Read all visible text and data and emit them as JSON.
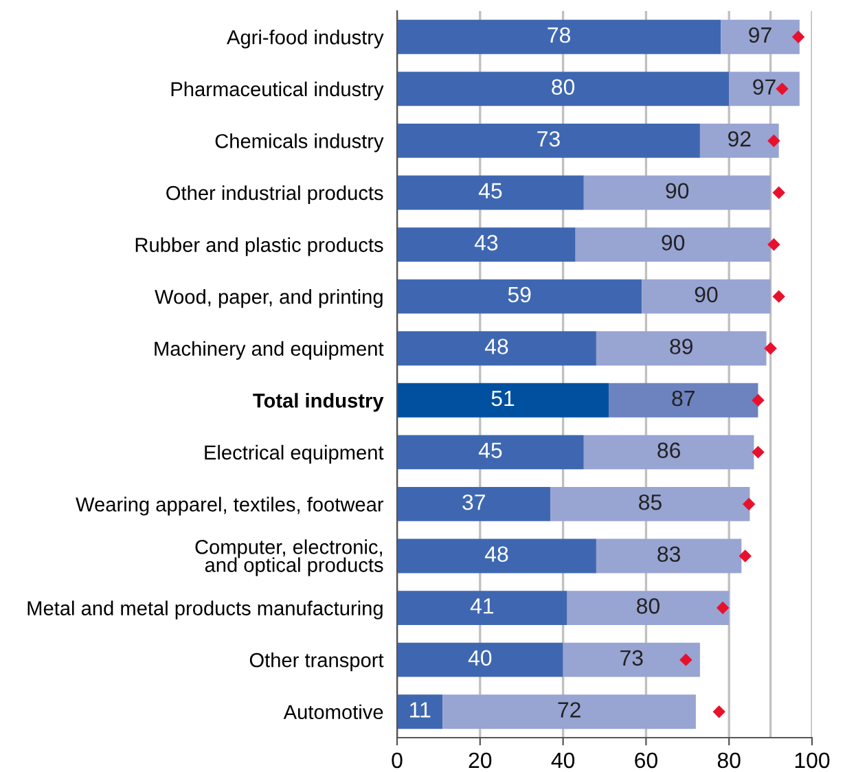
{
  "chart_data": {
    "type": "bar",
    "orientation": "horizontal",
    "stacked": true,
    "categories": [
      "Agri-food industry",
      "Pharmaceutical industry",
      "Chemicals industry",
      "Other industrial products",
      "Rubber and plastic products",
      "Wood, paper, and printing",
      "Machinery and equipment",
      "Total industry",
      "Electrical equipment",
      "Wearing apparel, textiles, footwear",
      "Computer, electronic,\nand optical products",
      "Metal and metal products manufacturing",
      "Other transport",
      "Automotive"
    ],
    "series": [
      {
        "colors": [
          "#3f67b1",
          "#3f67b1",
          "#3f67b1",
          "#3f67b1",
          "#3f67b1",
          "#3f67b1",
          "#3f67b1",
          "#0050a0",
          "#3f67b1",
          "#3f67b1",
          "#3f67b1",
          "#3f67b1",
          "#3f67b1",
          "#3f67b1"
        ],
        "values": [
          78,
          80,
          73,
          45,
          43,
          59,
          48,
          51,
          45,
          37,
          48,
          41,
          40,
          11
        ],
        "value_labels": [
          "78",
          "80",
          "73",
          "45",
          "43",
          "59",
          "48",
          "51",
          "45",
          "37",
          "48",
          "41",
          "40",
          "11"
        ]
      },
      {
        "colors": [
          "#98a4d2",
          "#98a4d2",
          "#98a4d2",
          "#98a4d2",
          "#98a4d2",
          "#98a4d2",
          "#98a4d2",
          "#6d83bf",
          "#98a4d2",
          "#98a4d2",
          "#98a4d2",
          "#98a4d2",
          "#98a4d2",
          "#98a4d2"
        ],
        "values": [
          19,
          17,
          19,
          45,
          47,
          31,
          41,
          36,
          41,
          48,
          35,
          39,
          33,
          61
        ]
      },
      {
        "type": "scatter",
        "color": "#e8112d",
        "marker": "diamond",
        "values": [
          96.7,
          92.8,
          90.8,
          92.0,
          90.8,
          92.0,
          90.0,
          87.0,
          87.0,
          84.8,
          83.9,
          78.5,
          69.6,
          77.6
        ]
      }
    ],
    "totals": [
      "97",
      "97",
      "92",
      "90",
      "90",
      "90",
      "89",
      "87",
      "86",
      "85",
      "83",
      "80",
      "73",
      "72"
    ],
    "xlim": [
      0,
      100
    ],
    "xticks": [
      0,
      20,
      40,
      60,
      80,
      100
    ],
    "grid": "x",
    "ref_lines": [
      {
        "axis": "x",
        "value": 90,
        "color": "#c0c0c0",
        "line_style": "solid"
      }
    ]
  }
}
